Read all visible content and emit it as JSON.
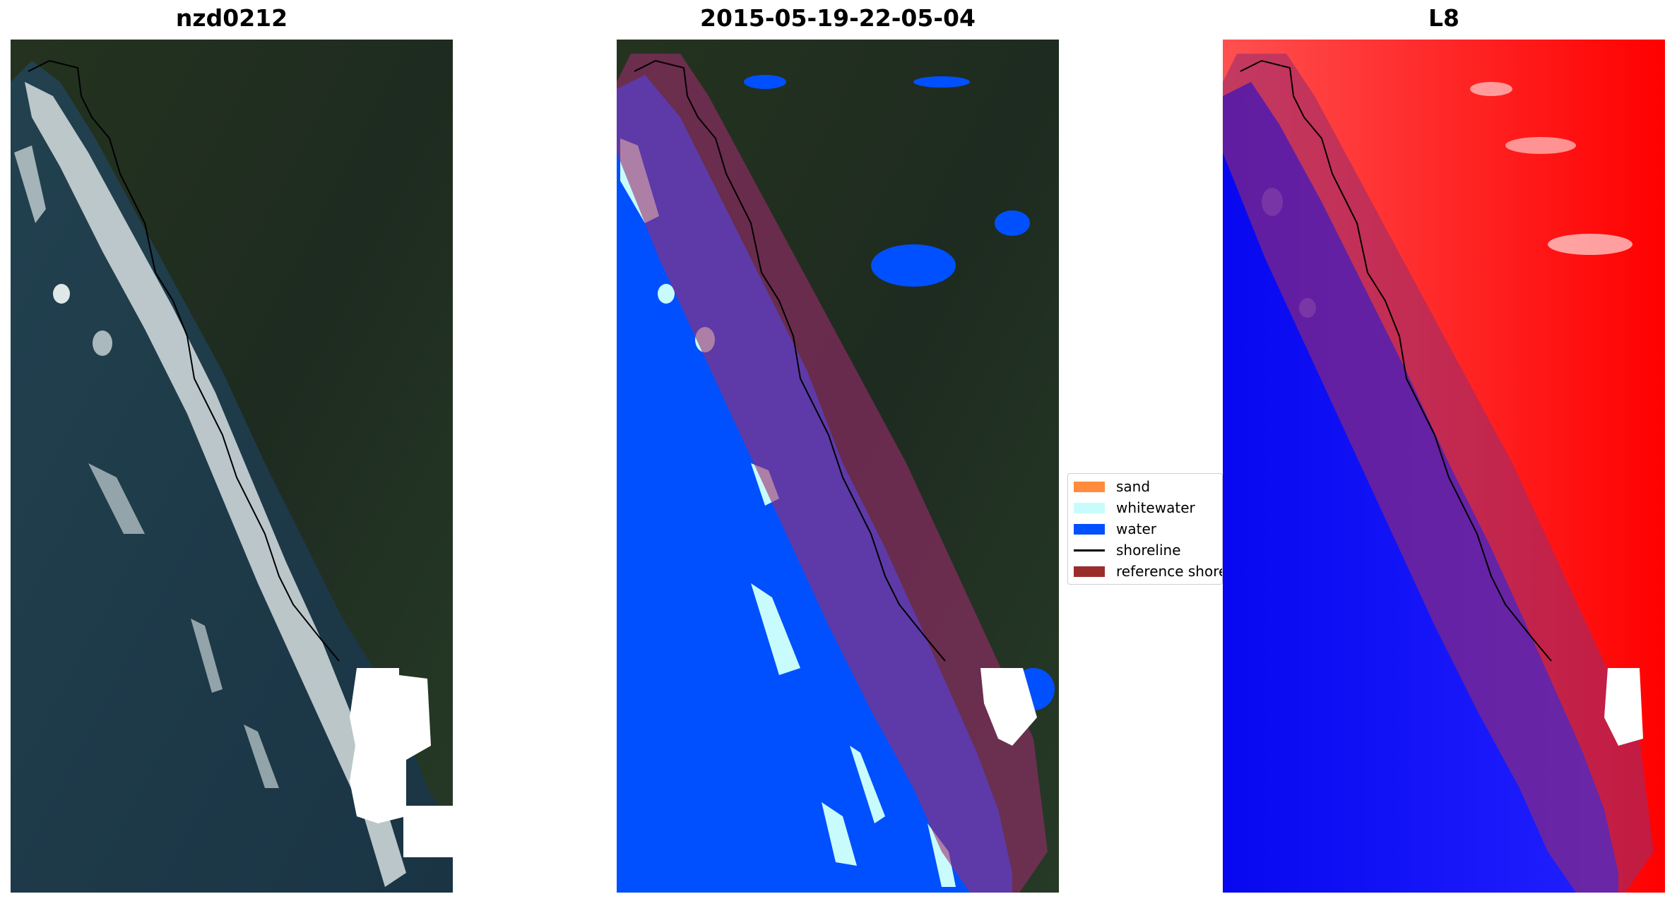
{
  "panels": [
    {
      "title": "nzd0212"
    },
    {
      "title": "2015-05-19-22-05-04"
    },
    {
      "title": "L8"
    }
  ],
  "legend": {
    "items": [
      {
        "label": "sand",
        "color": "#ff8c3c",
        "kind": "patch"
      },
      {
        "label": "whitewater",
        "color": "#c8fcfc",
        "kind": "patch"
      },
      {
        "label": "water",
        "color": "#0050ff",
        "kind": "patch"
      },
      {
        "label": "shoreline",
        "color": "#000000",
        "kind": "line"
      },
      {
        "label": "reference shoreline buffer",
        "color": "#9b2c2c",
        "kind": "patch"
      }
    ]
  },
  "colors": {
    "ocean": "#1f3f4f",
    "land": "#1e2d22",
    "classified_water": "#0050ff",
    "whitewater": "#c8fcfc",
    "buffer": "#9b2c2c",
    "index_positive": "#ff1a1a",
    "index_negative": "#1a1aff",
    "cloud_mask": "#ffffff"
  },
  "icons": {
    "shoreline": "shoreline-line",
    "cloud": "cloud-mask-shape"
  }
}
